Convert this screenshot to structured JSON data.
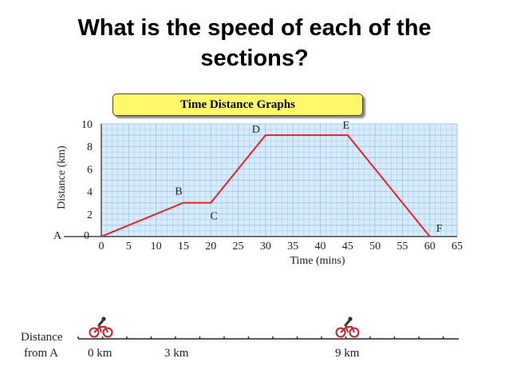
{
  "slide": {
    "title": "What is the speed of each of the sections?"
  },
  "chart_data": {
    "type": "line",
    "title": "Time Distance Graphs",
    "xlabel": "Time (mins)",
    "ylabel": "Distance (km)",
    "xlim": [
      0,
      65
    ],
    "ylim": [
      0,
      10
    ],
    "x_ticks": [
      0,
      5,
      10,
      15,
      20,
      25,
      30,
      35,
      40,
      45,
      50,
      55,
      60,
      65
    ],
    "y_ticks": [
      2,
      4,
      6,
      8,
      10
    ],
    "y_tick_labels": [
      "2",
      "4",
      "6",
      "8",
      "10"
    ],
    "x_tick_labels": [
      "0",
      "5",
      "10",
      "15",
      "20",
      "25",
      "30",
      "35",
      "40",
      "45",
      "50",
      "55",
      "60",
      "65"
    ],
    "grid": true,
    "line_color": "#e8202a",
    "grid_color": "#9fc8ee",
    "background_color": "#d8ecfb",
    "origin_label": "A",
    "y_zero_label": "0",
    "series": [
      {
        "x": [
          0,
          15,
          20,
          30,
          45,
          60
        ],
        "y": [
          0,
          3,
          3,
          9,
          9,
          0
        ]
      }
    ],
    "point_labels": [
      "B",
      "C",
      "D",
      "E",
      "F"
    ]
  },
  "distance_line": {
    "label_line1": "Distance",
    "label_line2": "from A",
    "markers": [
      "0 km",
      "3 km",
      "9 km"
    ],
    "cyclist_icon": "cyclist-icon"
  }
}
